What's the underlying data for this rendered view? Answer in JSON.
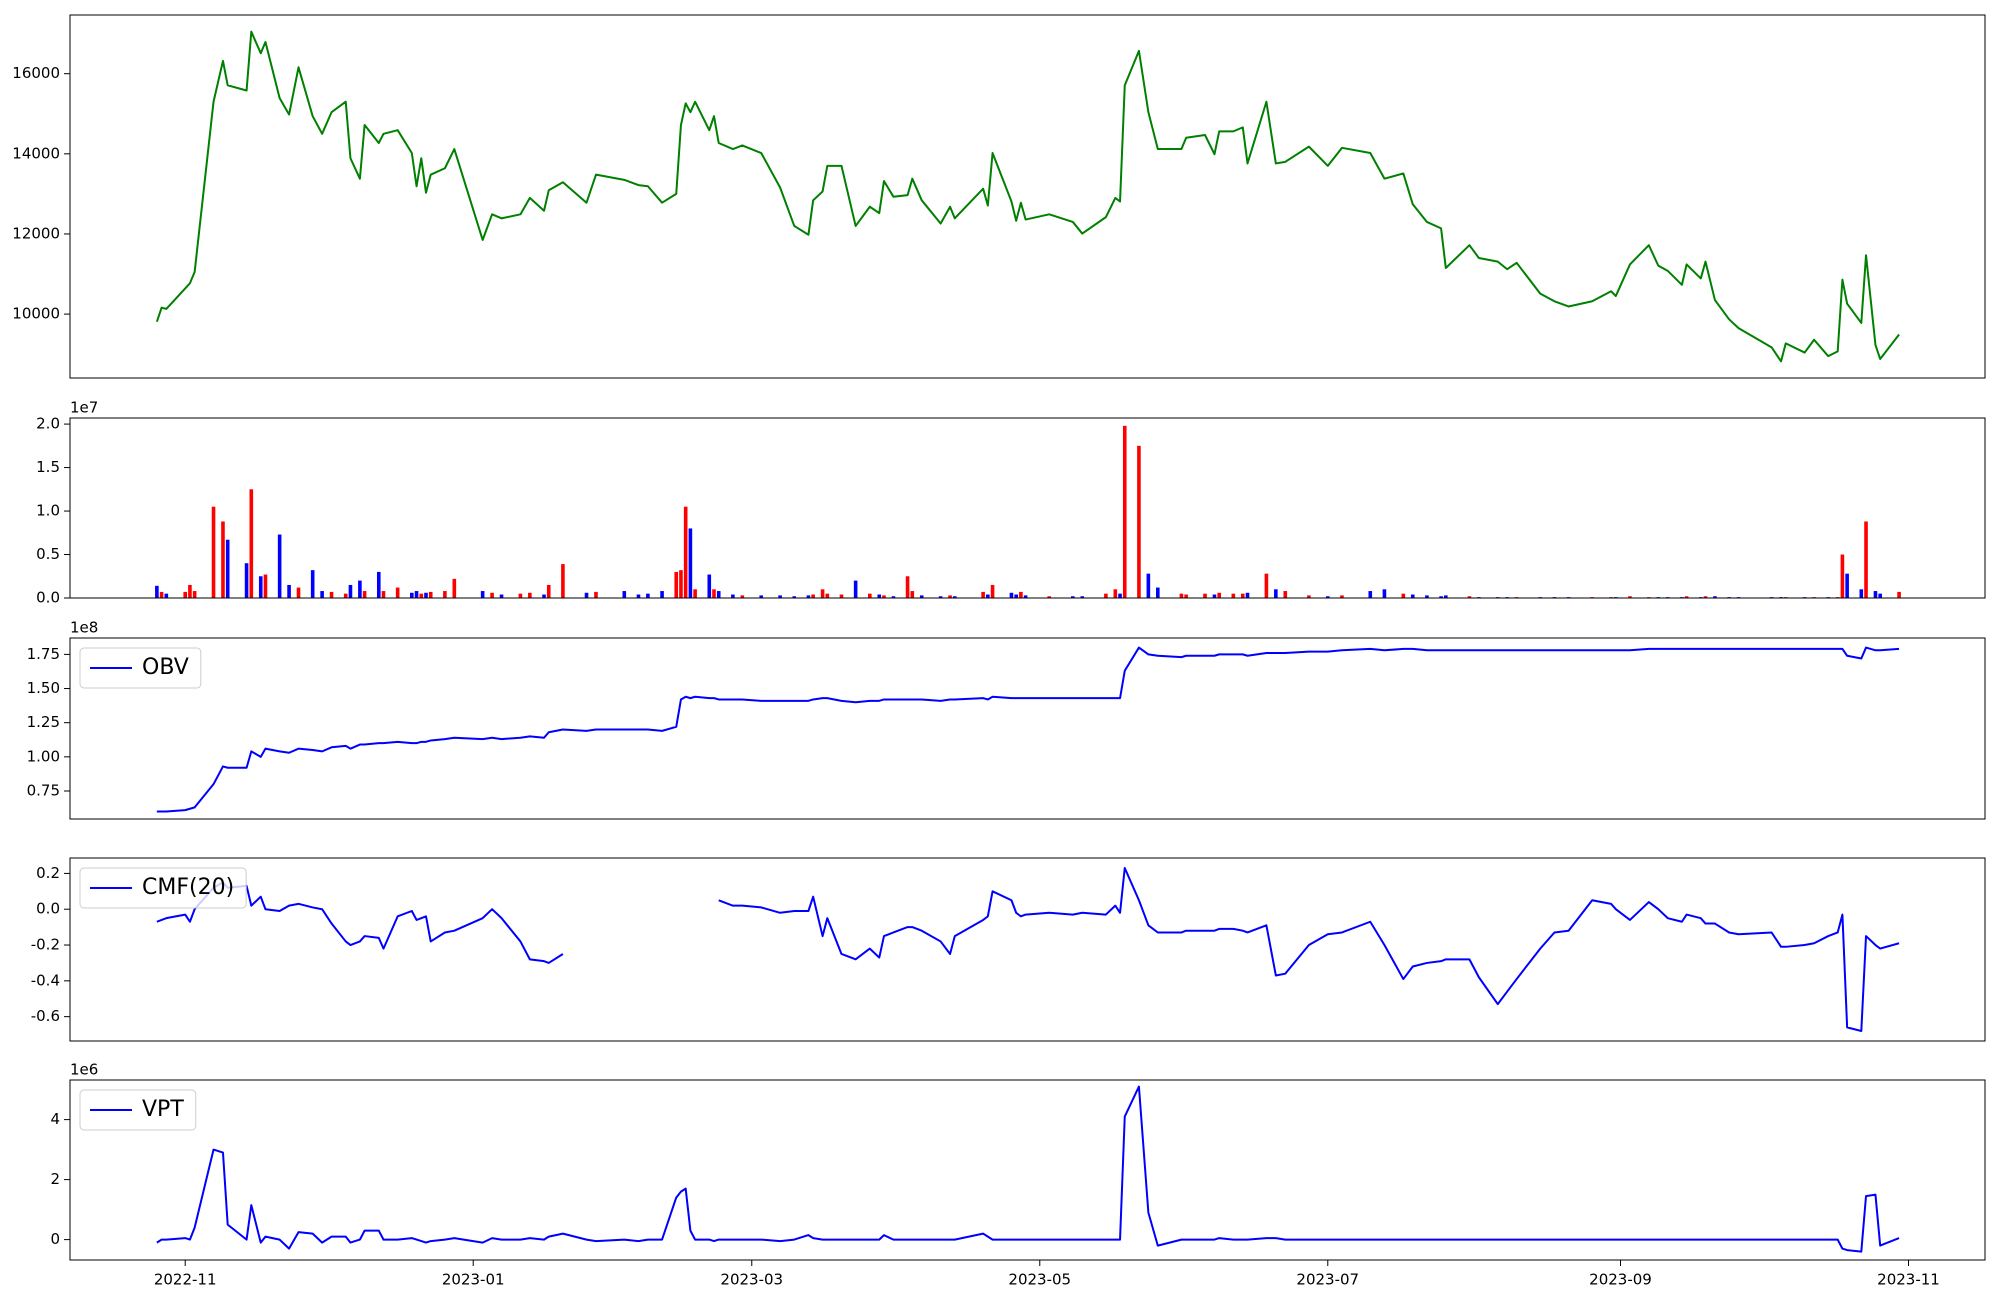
{
  "chart_data": {
    "type": "multi-panel",
    "x": [
      25,
      26,
      27,
      31,
      32,
      33,
      37,
      39,
      40,
      44,
      45,
      47,
      48,
      51,
      53,
      55,
      58,
      60,
      62,
      65,
      66,
      68,
      69,
      72,
      73,
      76,
      79,
      80,
      81,
      82,
      83,
      86,
      88,
      94,
      96,
      98,
      102,
      104,
      107,
      108,
      111,
      116,
      118,
      124,
      127,
      129,
      132,
      135,
      136,
      137,
      138,
      139,
      142,
      143,
      144,
      147,
      149,
      153,
      157,
      160,
      163,
      164,
      166,
      167,
      170,
      173,
      176,
      178,
      179,
      181,
      184,
      185,
      187,
      191,
      193,
      194,
      200,
      201,
      202,
      206,
      207,
      208,
      209,
      214,
      219,
      221,
      226,
      228,
      229,
      230,
      233,
      235,
      237,
      242,
      243,
      247,
      249,
      250,
      253,
      255,
      256,
      260,
      262,
      264,
      269,
      273,
      276,
      282,
      285,
      289,
      291,
      294,
      297,
      298,
      303,
      305,
      309,
      311,
      313,
      318,
      321,
      324,
      329,
      333,
      334,
      337,
      341,
      343,
      345,
      348,
      349,
      352,
      353,
      355,
      358,
      360,
      367,
      369,
      370,
      374,
      376,
      379,
      381,
      382,
      383,
      386,
      387,
      389,
      390,
      394
    ],
    "xlim": [
      6.6,
      412.2
    ],
    "xticks": [
      {
        "value": 31,
        "label": "2022-11"
      },
      {
        "value": 92,
        "label": "2023-01"
      },
      {
        "value": 151,
        "label": "2023-03"
      },
      {
        "value": 212,
        "label": "2023-05"
      },
      {
        "value": 273,
        "label": "2023-07"
      },
      {
        "value": 335,
        "label": "2023-09"
      },
      {
        "value": 396,
        "label": "2023-11"
      }
    ],
    "panels": [
      {
        "type": "line",
        "ylim": [
          8405,
          17465
        ],
        "yticks": [
          10000,
          12000,
          14000,
          16000
        ],
        "series": [
          {
            "color": "green",
            "values": [
              9810,
              10160,
              10130,
              10640,
              10770,
              11050,
              15300,
              16320,
              15710,
              15580,
              17050,
              16510,
              16790,
              15390,
              14980,
              16160,
              14940,
              14500,
              15040,
              15300,
              13890,
              13380,
              14720,
              14270,
              14500,
              14590,
              14020,
              13190,
              13890,
              13030,
              13480,
              13640,
              14120,
              11850,
              12490,
              12390,
              12490,
              12900,
              12580,
              13090,
              13290,
              12780,
              13480,
              13350,
              13220,
              13190,
              12780,
              13000,
              14720,
              15260,
              15040,
              15300,
              14590,
              14940,
              14270,
              14120,
              14210,
              14020,
              13160,
              12200,
              11980,
              12840,
              13060,
              13700,
              13700,
              12200,
              12680,
              12520,
              13320,
              12930,
              12970,
              13380,
              12840,
              12260,
              12680,
              12390,
              13130,
              12710,
              14020,
              12810,
              12330,
              12780,
              12360,
              12490,
              12300,
              12010,
              12420,
              12900,
              12810,
              15710,
              16570,
              15040,
              14120,
              14120,
              14400,
              14470,
              13990,
              14560,
              14560,
              14660,
              13760,
              15300,
              13760,
              13800,
              14180,
              13700,
              14150,
              14020,
              13380,
              13510,
              12740,
              12300,
              12140,
              11150,
              11720,
              11400,
              11310,
              11120,
              11280,
              10510,
              10320,
              10190,
              10320,
              10570,
              10450,
              11240,
              11720,
              11210,
              11080,
              10730,
              11240,
              10890,
              11310,
              10350,
              9870,
              9650,
              9170,
              8820,
              9270,
              9040,
              9360,
              8950,
              9070,
              10860,
              10260,
              9780,
              11470,
              9230,
              8880,
              9490
            ]
          }
        ]
      },
      {
        "type": "bar",
        "ylim": [
          0,
          2.07
        ],
        "offset_label": "1e7",
        "up_color": "red",
        "down_color": "blue",
        "yticks": [
          {
            "value": 0,
            "label": "0.0"
          },
          0.5,
          {
            "value": 1,
            "label": "1.0"
          },
          1.5,
          {
            "value": 2,
            "label": "2.0"
          }
        ],
        "values": [
          0.14,
          0.07,
          0.05,
          0.07,
          0.15,
          0.08,
          1.05,
          0.88,
          0.67,
          0.4,
          1.25,
          0.25,
          0.27,
          0.73,
          0.15,
          0.12,
          0.32,
          0.08,
          0.07,
          0.05,
          0.15,
          0.2,
          0.08,
          0.3,
          0.08,
          0.12,
          0.06,
          0.08,
          0.05,
          0.06,
          0.07,
          0.08,
          0.22,
          0.08,
          0.06,
          0.04,
          0.05,
          0.06,
          0.04,
          0.15,
          0.39,
          0.06,
          0.07,
          0.08,
          0.04,
          0.05,
          0.08,
          0.3,
          0.32,
          1.05,
          0.8,
          0.1,
          0.27,
          0.1,
          0.08,
          0.04,
          0.03,
          0.03,
          0.03,
          0.02,
          0.03,
          0.04,
          0.1,
          0.05,
          0.04,
          0.2,
          0.05,
          0.04,
          0.03,
          0.02,
          0.25,
          0.08,
          0.03,
          0.02,
          0.03,
          0.02,
          0.07,
          0.04,
          0.15,
          0.06,
          0.04,
          0.07,
          0.03,
          0.02,
          0.02,
          0.02,
          0.05,
          0.1,
          0.05,
          1.98,
          1.75,
          0.28,
          0.12,
          0.05,
          0.04,
          0.05,
          0.04,
          0.06,
          0.05,
          0.05,
          0.06,
          0.28,
          0.1,
          0.08,
          0.03,
          0.02,
          0.03,
          0.08,
          0.1,
          0.05,
          0.04,
          0.03,
          0.02,
          0.03,
          0.02,
          0.01,
          0.01,
          0.01,
          0.01,
          0.01,
          0.01,
          0.01,
          0.01,
          0.01,
          0.01,
          0.02,
          0.01,
          0.01,
          0.01,
          0.01,
          0.02,
          0.01,
          0.02,
          0.02,
          0.01,
          0.01,
          0.01,
          0.01,
          0.01,
          0.01,
          0.01,
          0.01,
          0.01,
          0.5,
          0.28,
          0.1,
          0.88,
          0.08,
          0.05,
          0.07
        ]
      },
      {
        "type": "line",
        "ylim": [
          0.545,
          1.87
        ],
        "offset_label": "1e8",
        "legend": "upper left",
        "yticks": [
          0.75,
          {
            "value": 1,
            "label": "1.00"
          },
          1.25,
          {
            "value": 1.5,
            "label": "1.50"
          },
          1.75
        ],
        "series": [
          {
            "name": "OBV",
            "color": "blue",
            "values": [
              0.6,
              0.6,
              0.6,
              0.61,
              0.62,
              0.63,
              0.8,
              0.93,
              0.92,
              0.92,
              1.04,
              1.0,
              1.06,
              1.04,
              1.03,
              1.06,
              1.05,
              1.04,
              1.07,
              1.08,
              1.06,
              1.09,
              1.09,
              1.1,
              1.1,
              1.11,
              1.1,
              1.1,
              1.11,
              1.11,
              1.12,
              1.13,
              1.14,
              1.13,
              1.14,
              1.13,
              1.14,
              1.15,
              1.14,
              1.18,
              1.2,
              1.19,
              1.2,
              1.2,
              1.2,
              1.2,
              1.19,
              1.22,
              1.42,
              1.44,
              1.43,
              1.44,
              1.43,
              1.43,
              1.42,
              1.42,
              1.42,
              1.41,
              1.41,
              1.41,
              1.41,
              1.42,
              1.43,
              1.43,
              1.41,
              1.4,
              1.41,
              1.41,
              1.42,
              1.42,
              1.42,
              1.42,
              1.42,
              1.41,
              1.42,
              1.42,
              1.43,
              1.42,
              1.44,
              1.43,
              1.43,
              1.43,
              1.43,
              1.43,
              1.43,
              1.43,
              1.43,
              1.43,
              1.43,
              1.63,
              1.8,
              1.75,
              1.74,
              1.73,
              1.74,
              1.74,
              1.74,
              1.75,
              1.75,
              1.75,
              1.74,
              1.76,
              1.76,
              1.76,
              1.77,
              1.77,
              1.78,
              1.79,
              1.78,
              1.79,
              1.79,
              1.78,
              1.78,
              1.78,
              1.78,
              1.78,
              1.78,
              1.78,
              1.78,
              1.78,
              1.78,
              1.78,
              1.78,
              1.78,
              1.78,
              1.78,
              1.79,
              1.79,
              1.79,
              1.79,
              1.79,
              1.79,
              1.79,
              1.79,
              1.79,
              1.79,
              1.79,
              1.79,
              1.79,
              1.79,
              1.79,
              1.79,
              1.79,
              1.79,
              1.74,
              1.72,
              1.8,
              1.78,
              1.78,
              1.79
            ]
          }
        ]
      },
      {
        "type": "line",
        "ylim": [
          -0.736,
          0.286
        ],
        "legend": "upper left",
        "yticks": [
          0.2,
          {
            "value": 0,
            "label": "0.0"
          },
          -0.2,
          -0.4,
          -0.6
        ],
        "series": [
          {
            "name": "CMF(20)",
            "color": "blue",
            "values": [
              -0.07,
              -0.06,
              -0.05,
              -0.03,
              -0.07,
              0.0,
              0.12,
              0.15,
              0.12,
              0.13,
              0.02,
              0.07,
              0.0,
              -0.01,
              0.02,
              0.03,
              0.01,
              0.0,
              -0.08,
              -0.18,
              -0.2,
              -0.18,
              -0.15,
              -0.16,
              -0.22,
              -0.04,
              -0.01,
              -0.06,
              -0.05,
              -0.04,
              -0.18,
              -0.13,
              -0.12,
              -0.05,
              0.0,
              -0.05,
              -0.18,
              -0.28,
              -0.29,
              -0.3,
              -0.25,
              null,
              null,
              null,
              null,
              null,
              null,
              null,
              null,
              null,
              null,
              null,
              null,
              null,
              0.05,
              0.02,
              0.02,
              0.01,
              -0.02,
              -0.01,
              -0.01,
              0.07,
              -0.15,
              -0.05,
              -0.25,
              -0.28,
              -0.22,
              -0.27,
              -0.15,
              -0.13,
              -0.1,
              -0.1,
              -0.12,
              -0.18,
              -0.25,
              -0.15,
              -0.06,
              -0.04,
              0.1,
              0.05,
              -0.02,
              -0.04,
              -0.03,
              -0.02,
              -0.03,
              -0.02,
              -0.03,
              0.02,
              -0.02,
              0.23,
              0.05,
              -0.09,
              -0.13,
              -0.13,
              -0.12,
              -0.12,
              -0.12,
              -0.11,
              -0.11,
              -0.12,
              -0.13,
              -0.09,
              -0.37,
              -0.36,
              -0.2,
              -0.14,
              -0.13,
              -0.07,
              -0.2,
              -0.39,
              -0.32,
              -0.3,
              -0.29,
              -0.28,
              -0.28,
              -0.38,
              -0.53,
              -0.46,
              -0.39,
              -0.22,
              -0.13,
              -0.12,
              0.05,
              0.03,
              0.0,
              -0.06,
              0.04,
              0.0,
              -0.05,
              -0.07,
              -0.03,
              -0.05,
              -0.08,
              -0.08,
              -0.13,
              -0.14,
              -0.13,
              -0.21,
              -0.21,
              -0.2,
              -0.19,
              -0.15,
              -0.13,
              -0.03,
              -0.66,
              -0.68,
              -0.15,
              -0.2,
              -0.22,
              -0.19
            ]
          }
        ]
      },
      {
        "type": "line",
        "ylim": [
          -0.68,
          5.32
        ],
        "offset_label": "1e6",
        "legend": "upper left",
        "yticks": [
          0,
          2,
          4
        ],
        "series": [
          {
            "name": "VPT",
            "color": "blue",
            "values": [
              -0.1,
              0.0,
              0.0,
              0.05,
              0.0,
              0.4,
              3.0,
              2.9,
              0.5,
              0.0,
              1.15,
              -0.1,
              0.1,
              0.0,
              -0.3,
              0.25,
              0.2,
              -0.1,
              0.1,
              0.1,
              -0.1,
              0.0,
              0.3,
              0.3,
              0.0,
              0.0,
              0.05,
              0.0,
              -0.05,
              -0.1,
              -0.05,
              0.0,
              0.05,
              -0.1,
              0.05,
              0.0,
              0.0,
              0.05,
              0.0,
              0.1,
              0.2,
              0.0,
              -0.05,
              0.0,
              -0.05,
              0.0,
              0.0,
              1.4,
              1.6,
              1.7,
              0.3,
              0.0,
              0.0,
              -0.05,
              0.0,
              0.0,
              0.0,
              0.0,
              -0.05,
              0.0,
              0.15,
              0.05,
              0.0,
              0.0,
              0.0,
              0.0,
              0.0,
              0.0,
              0.15,
              0.0,
              0.0,
              0.0,
              0.0,
              0.0,
              0.0,
              0.0,
              0.2,
              0.1,
              0.0,
              0.0,
              0.0,
              0.0,
              0.0,
              0.0,
              0.0,
              0.0,
              0.0,
              0.0,
              0.0,
              4.1,
              5.1,
              0.9,
              -0.2,
              0.0,
              0.0,
              0.0,
              0.0,
              0.05,
              0.0,
              0.0,
              0.0,
              0.05,
              0.05,
              0.0,
              0.0,
              0.0,
              0.0,
              0.0,
              0.0,
              0.0,
              0.0,
              0.0,
              0.0,
              0.0,
              0.0,
              0.0,
              0.0,
              0.0,
              0.0,
              0.0,
              0.0,
              0.0,
              0.0,
              0.0,
              0.0,
              0.0,
              0.0,
              0.0,
              0.0,
              0.0,
              0.0,
              0.0,
              0.0,
              0.0,
              0.0,
              0.0,
              0.0,
              0.0,
              0.0,
              0.0,
              0.0,
              0.0,
              0.0,
              -0.3,
              -0.35,
              -0.4,
              1.45,
              1.5,
              -0.2,
              0.05
            ]
          }
        ]
      }
    ]
  }
}
